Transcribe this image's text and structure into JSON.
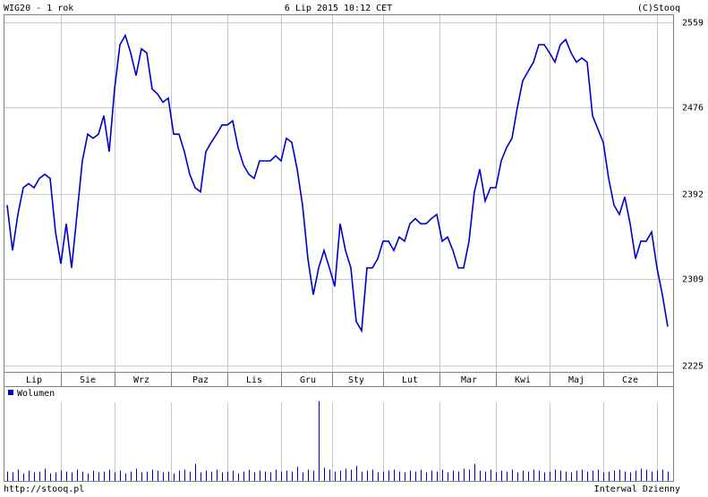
{
  "chart_data": [
    {
      "type": "line",
      "title": "WIG20 - 1 rok",
      "date": "6 Lip 2015 10:12 CET",
      "copyright": "(C)Stooq",
      "categories": [
        null,
        null,
        null,
        null,
        null,
        "Lip",
        null,
        null,
        null,
        null,
        null,
        null,
        null,
        null,
        null,
        "Sie",
        null,
        null,
        null,
        null,
        null,
        null,
        null,
        null,
        null,
        "Wrz",
        null,
        null,
        null,
        null,
        null,
        null,
        null,
        null,
        null,
        null,
        "Paz",
        null,
        null,
        null,
        null,
        null,
        null,
        null,
        null,
        null,
        "Lis",
        null,
        null,
        null,
        null,
        null,
        null,
        null,
        null,
        null,
        "Gru",
        null,
        null,
        null,
        null,
        null,
        null,
        null,
        null,
        "Sty",
        null,
        null,
        null,
        null,
        null,
        null,
        null,
        null,
        null,
        "Lut",
        null,
        null,
        null,
        null,
        null,
        null,
        null,
        null,
        null,
        null,
        "Mar",
        null,
        null,
        null,
        null,
        null,
        null,
        null,
        null,
        null,
        "Kwi",
        null,
        null,
        null,
        null,
        null,
        null,
        null,
        null,
        null,
        "Maj",
        null,
        null,
        null,
        null,
        null,
        null,
        null,
        null,
        null,
        "Cze",
        null,
        null,
        null,
        null,
        null,
        null,
        null
      ],
      "series": [
        {
          "color": "#0000cc",
          "values": [
            2381,
            2337,
            2372,
            2398,
            2402,
            2398,
            2407,
            2411,
            2407,
            2355,
            2324,
            2363,
            2320,
            2372,
            2424,
            2450,
            2446,
            2450,
            2468,
            2433,
            2494,
            2537,
            2546,
            2529,
            2507,
            2533,
            2529,
            2494,
            2489,
            2481,
            2485,
            2450,
            2450,
            2433,
            2411,
            2398,
            2394,
            2433,
            2442,
            2450,
            2459,
            2459,
            2463,
            2437,
            2420,
            2411,
            2407,
            2424,
            2424,
            2424,
            2429,
            2424,
            2446,
            2442,
            2416,
            2381,
            2329,
            2294,
            2320,
            2337,
            2320,
            2302,
            2363,
            2337,
            2320,
            2268,
            2259,
            2320,
            2320,
            2329,
            2346,
            2346,
            2337,
            2350,
            2346,
            2363,
            2368,
            2363,
            2363,
            2368,
            2372,
            2346,
            2350,
            2337,
            2320,
            2320,
            2346,
            2394,
            2416,
            2385,
            2398,
            2398,
            2424,
            2437,
            2446,
            2476,
            2502,
            2511,
            2520,
            2537,
            2537,
            2529,
            2520,
            2537,
            2542,
            2529,
            2520,
            2524,
            2520,
            2468,
            2455,
            2442,
            2407,
            2381,
            2372,
            2389,
            2363,
            2329,
            2346,
            2346,
            2355,
            2320,
            2294,
            2263
          ]
        }
      ],
      "ylim": [
        2219,
        2570
      ],
      "yticks": [
        2225,
        2309,
        2392,
        2476,
        2559
      ],
      "grid": true
    },
    {
      "type": "bar",
      "series": [
        {
          "name": "Wolumen",
          "color": "#0000cc",
          "values": [
            10,
            9,
            12,
            8,
            11,
            9,
            10,
            13,
            8,
            9,
            11,
            10,
            9,
            12,
            10,
            8,
            11,
            9,
            10,
            12,
            9,
            11,
            8,
            10,
            13,
            9,
            10,
            12,
            11,
            9,
            10,
            8,
            11,
            12,
            10,
            18,
            9,
            11,
            10,
            12,
            9,
            10,
            11,
            8,
            10,
            12,
            9,
            11,
            10,
            9,
            12,
            10,
            11,
            10,
            15,
            9,
            12,
            11,
            85,
            14,
            12,
            10,
            11,
            13,
            12,
            16,
            10,
            11,
            12,
            9,
            10,
            11,
            12,
            10,
            9,
            11,
            10,
            12,
            9,
            11,
            10,
            12,
            9,
            11,
            10,
            13,
            12,
            18,
            11,
            10,
            12,
            9,
            11,
            10,
            12,
            9,
            11,
            10,
            12,
            11,
            9,
            10,
            12,
            11,
            10,
            9,
            11,
            12,
            10,
            11,
            12,
            9,
            10,
            11,
            12,
            10,
            9,
            11,
            13,
            12,
            10,
            11,
            12,
            10
          ]
        }
      ],
      "ylim": [
        0,
        100
      ]
    }
  ],
  "footer": {
    "url": "http://stooq.pl",
    "interval": "Interwal Dzienny"
  }
}
